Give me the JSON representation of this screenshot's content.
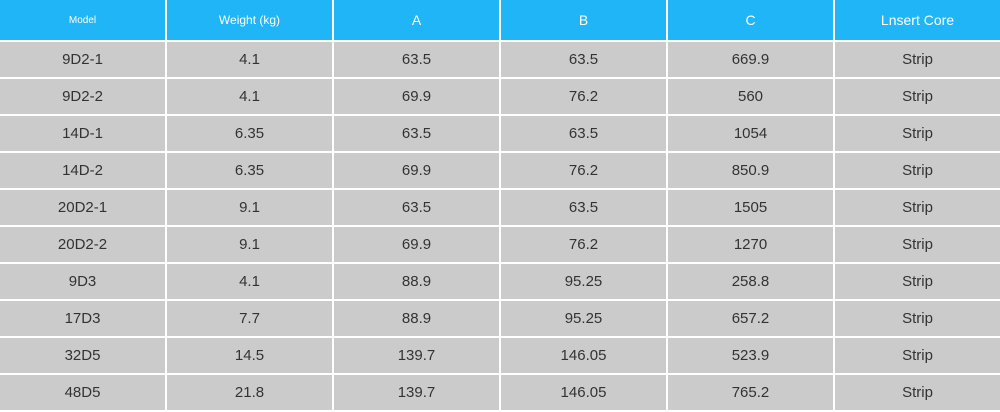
{
  "table": {
    "header": [
      "Model",
      "Weight (kg)",
      "A",
      "B",
      "C",
      "Lnsert Core"
    ],
    "rows": [
      [
        "9D2-1",
        "4.1",
        "63.5",
        "63.5",
        "669.9",
        "Strip"
      ],
      [
        "9D2-2",
        "4.1",
        "69.9",
        "76.2",
        "560",
        "Strip"
      ],
      [
        "14D-1",
        "6.35",
        "63.5",
        "63.5",
        "1054",
        "Strip"
      ],
      [
        "14D-2",
        "6.35",
        "69.9",
        "76.2",
        "850.9",
        "Strip"
      ],
      [
        "20D2-1",
        "9.1",
        "63.5",
        "63.5",
        "1505",
        "Strip"
      ],
      [
        "20D2-2",
        "9.1",
        "69.9",
        "76.2",
        "1270",
        "Strip"
      ],
      [
        "9D3",
        "4.1",
        "88.9",
        "95.25",
        "258.8",
        "Strip"
      ],
      [
        "17D3",
        "7.7",
        "88.9",
        "95.25",
        "657.2",
        "Strip"
      ],
      [
        "32D5",
        "14.5",
        "139.7",
        "146.05",
        "523.9",
        "Strip"
      ],
      [
        "48D5",
        "21.8",
        "139.7",
        "146.05",
        "765.2",
        "Strip"
      ]
    ]
  }
}
